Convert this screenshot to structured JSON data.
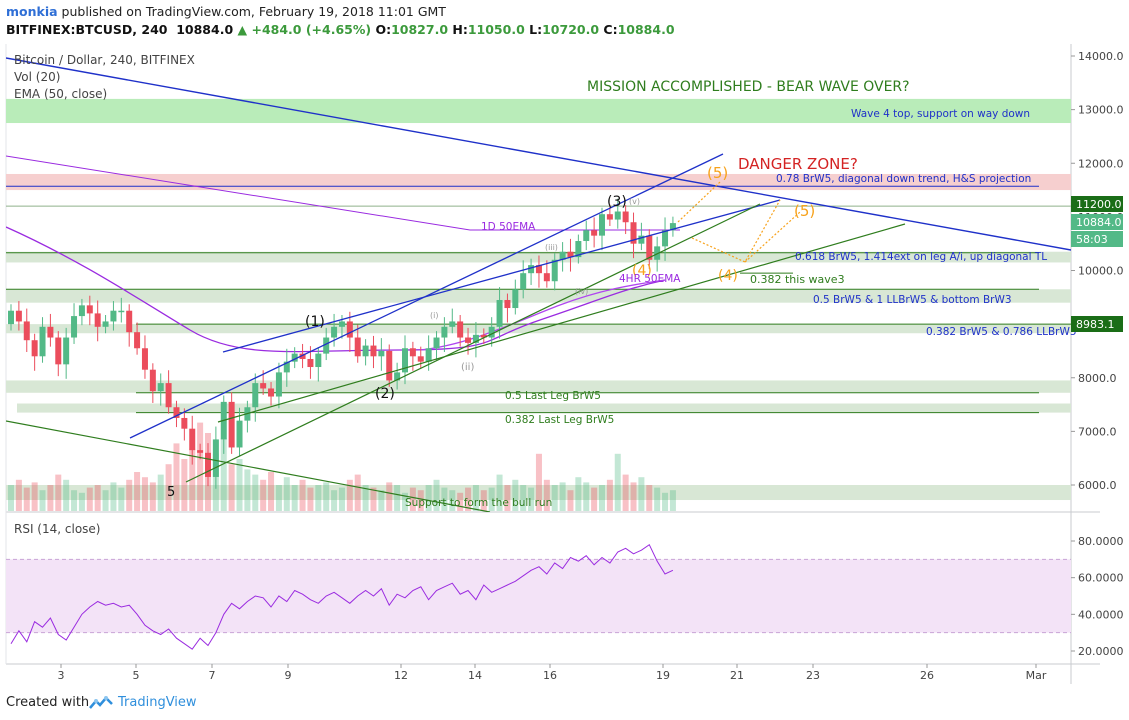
{
  "header": {
    "username": "monkia",
    "published": "published on TradingView.com, February 19, 2018 11:01 GMT",
    "symbol_line": "BITFINEX:BTCUSD, 240",
    "last": "10884.0",
    "change": "▲ +484.0 (+4.65%)",
    "o_label": "O:",
    "o_val": "10827.0",
    "h_label": "H:",
    "h_val": "11050.0",
    "l_label": "L:",
    "l_val": "10720.0",
    "c_label": "C:",
    "c_val": "10884.0"
  },
  "legend": {
    "main": "Bitcoin / Dollar, 240, BITFINEX",
    "vol": "Vol (20)",
    "ema": "EMA (50, close)",
    "rsi": "RSI (14, close)"
  },
  "footer": {
    "created": "Created with",
    "brand": "TradingView"
  },
  "colors": {
    "up": "#53b987",
    "down": "#eb4d5c",
    "blue": "#1f31c9",
    "green": "#2f7d1e",
    "purple": "#9a2be0",
    "orange": "#f7a21b"
  },
  "chart_data": {
    "type": "candlestick",
    "x_ticks": [
      "3",
      "5",
      "7",
      "9",
      "12",
      "14",
      "16",
      "19",
      "21",
      "23",
      "26",
      "Mar"
    ],
    "y_ticks": [
      "14000.0",
      "13000.0",
      "12000.0",
      "11000.0",
      "10000.0",
      "9000.0",
      "8000.0",
      "7000.0",
      "6000.0"
    ],
    "ylim": [
      5500,
      14300
    ],
    "price_tags": [
      {
        "label": "11200.0",
        "value": 11200
      },
      {
        "label": "10884.0",
        "value": 10884
      },
      {
        "label": "58:03",
        "value": 10600
      },
      {
        "label": "8983.1",
        "value": 8983.1
      }
    ],
    "rsi_ticks": [
      "80.0000",
      "60.0000",
      "40.0000",
      "20.0000"
    ],
    "rsi_band": [
      30,
      70
    ],
    "zones": [
      {
        "label": "Wave 4 top, support on way down",
        "low": 12750,
        "high": 13200,
        "color": "#b9ecb9"
      },
      {
        "label": "0.78 BrW5, diagonal down trend, H&S projection",
        "low": 11500,
        "high": 11800,
        "color": "#f6cfcf"
      },
      {
        "label": "0.618 BrW5, 1.414ext on leg A/i, up diagonal TL",
        "low": 10150,
        "high": 10350,
        "color": "#d8e7d5"
      },
      {
        "label": "0.5 BrW5 & 1 LLBrW5 & bottom BrW3",
        "low": 9400,
        "high": 9650,
        "color": "#d8e7d5"
      },
      {
        "label": "0.382 BrW5 & 0.786 LLBrW5",
        "low": 8830,
        "high": 9000,
        "color": "#d8e7d5"
      },
      {
        "label": "0.5 Last Leg BrW5",
        "low": 7720,
        "high": 7950,
        "color": "#d8e7d5"
      },
      {
        "label": "0.382 Last Leg BrW5",
        "low": 7350,
        "high": 7520,
        "color": "#d8e7d5"
      },
      {
        "label": "Support to form the bull run",
        "low": 5720,
        "high": 6000,
        "color": "#d8e7d5"
      }
    ],
    "annotations": {
      "mission": "MISSION ACCOMPLISHED - BEAR WAVE OVER?",
      "danger": "DANGER ZONE?",
      "ema1d": "1D 50EMA",
      "ema4hr": "4HR 50EMA",
      "wave3": "0.382 this wave3"
    },
    "wave_labels": {
      "w1": "(1)",
      "w2": "(2)",
      "w3": "(3)",
      "w4": "(4)",
      "w5": "(5)",
      "five": "5",
      "i": "(i)",
      "ii": "(ii)",
      "iii": "(iii)",
      "iv": "(iv)",
      "v": "(v)"
    },
    "closes": [
      9250,
      9050,
      8700,
      8400,
      8950,
      8750,
      8250,
      8750,
      9150,
      9350,
      9200,
      8950,
      9050,
      9250,
      9250,
      8850,
      8550,
      8150,
      7750,
      7900,
      7450,
      7250,
      7050,
      6650,
      6600,
      6150,
      6850,
      7550,
      6700,
      7200,
      7450,
      7900,
      7800,
      7650,
      8100,
      8300,
      8450,
      8350,
      8200,
      8450,
      8750,
      8950,
      9050,
      8750,
      8400,
      8600,
      8400,
      8500,
      7950,
      8100,
      8550,
      8400,
      8300,
      8550,
      8750,
      8950,
      9050,
      8750,
      8650,
      8800,
      8750,
      8950,
      9450,
      9300,
      9650,
      9950,
      10100,
      9950,
      9800,
      10200,
      10350,
      10250,
      10550,
      10750,
      10650,
      11050,
      10950,
      11100,
      10900,
      10500,
      10650,
      10200,
      10450,
      10750,
      10884
    ],
    "volumes": [
      0.1,
      0.12,
      0.09,
      0.11,
      0.08,
      0.1,
      0.14,
      0.12,
      0.08,
      0.07,
      0.09,
      0.1,
      0.08,
      0.11,
      0.09,
      0.12,
      0.15,
      0.13,
      0.11,
      0.14,
      0.18,
      0.26,
      0.2,
      0.24,
      0.34,
      0.3,
      0.22,
      0.28,
      0.18,
      0.2,
      0.16,
      0.14,
      0.12,
      0.15,
      0.1,
      0.13,
      0.1,
      0.12,
      0.09,
      0.1,
      0.11,
      0.08,
      0.09,
      0.12,
      0.14,
      0.1,
      0.09,
      0.08,
      0.11,
      0.1,
      0.07,
      0.09,
      0.08,
      0.1,
      0.12,
      0.09,
      0.08,
      0.07,
      0.09,
      0.1,
      0.08,
      0.09,
      0.14,
      0.1,
      0.12,
      0.1,
      0.09,
      0.22,
      0.12,
      0.1,
      0.11,
      0.08,
      0.13,
      0.11,
      0.09,
      0.1,
      0.12,
      0.22,
      0.14,
      0.11,
      0.13,
      0.1,
      0.09,
      0.07,
      0.08
    ],
    "rsi": [
      24,
      31,
      25,
      36,
      33,
      38,
      29,
      26,
      33,
      40,
      44,
      47,
      45,
      46,
      44,
      45,
      40,
      34,
      31,
      29,
      32,
      27,
      24,
      21,
      27,
      23,
      30,
      40,
      46,
      43,
      47,
      50,
      49,
      44,
      50,
      47,
      53,
      51,
      48,
      46,
      50,
      52,
      49,
      46,
      50,
      53,
      50,
      54,
      45,
      51,
      49,
      53,
      55,
      48,
      53,
      55,
      57,
      51,
      53,
      48,
      56,
      52,
      54,
      56,
      58,
      61,
      64,
      66,
      62,
      68,
      65,
      71,
      69,
      72,
      67,
      71,
      68,
      74,
      76,
      73,
      75,
      78,
      69,
      62,
      64
    ]
  }
}
